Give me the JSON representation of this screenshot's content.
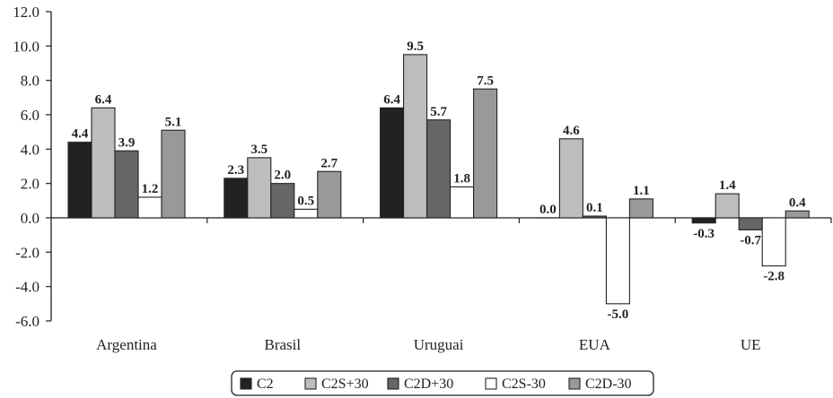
{
  "chart_data": {
    "type": "bar",
    "categories": [
      "Argentina",
      "Brasil",
      "Uruguai",
      "EUA",
      "UE"
    ],
    "series": [
      {
        "name": "C2",
        "values": [
          4.4,
          2.3,
          6.4,
          0.0,
          -0.3
        ],
        "color": "#222222"
      },
      {
        "name": "C2S+30",
        "values": [
          6.4,
          3.5,
          9.5,
          4.6,
          1.4
        ],
        "color": "#bdbdbd"
      },
      {
        "name": "C2D+30",
        "values": [
          3.9,
          2.0,
          5.7,
          0.1,
          -0.7
        ],
        "color": "#666666"
      },
      {
        "name": "C2S-30",
        "values": [
          1.2,
          0.5,
          1.8,
          -5.0,
          -2.8
        ],
        "color": "#ffffff"
      },
      {
        "name": "C2D-30",
        "values": [
          5.1,
          2.7,
          7.5,
          1.1,
          0.4
        ],
        "color": "#999999"
      }
    ],
    "y_ticks": [
      "12.0",
      "10.0",
      "8.0",
      "6.0",
      "4.0",
      "2.0",
      "0.0",
      "-2.0",
      "-4.0",
      "-6.0"
    ],
    "ylim": [
      -6,
      12
    ],
    "grid": false,
    "legend_position": "bottom-center",
    "title": "",
    "xlabel": "",
    "ylabel": ""
  }
}
